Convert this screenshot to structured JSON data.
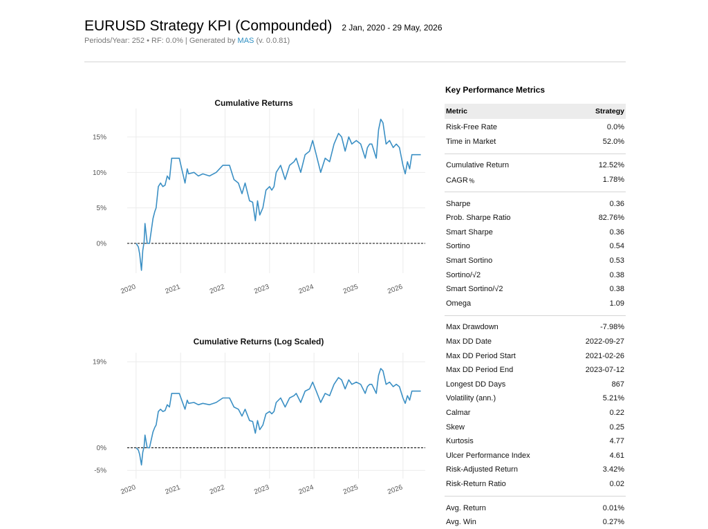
{
  "header": {
    "title": "EURUSD Strategy KPI (Compounded)",
    "date_range": "2 Jan, 2020 - 29 May, 2026",
    "subtitle_prefix": "Periods/Year: 252 • RF: 0.0% | Generated by ",
    "subtitle_link": "MAS",
    "subtitle_suffix": " (v. 0.0.81)"
  },
  "colors": {
    "line": "#3a8fc4",
    "link": "#2b8ec2",
    "grid": "#ebebeb"
  },
  "metrics": {
    "title": "Key Performance Metrics",
    "header": {
      "metric": "Metric",
      "value": "Strategy"
    },
    "groups": [
      [
        [
          "Risk-Free Rate",
          "0.0%"
        ],
        [
          "Time in Market",
          "52.0%"
        ]
      ],
      [
        [
          "Cumulative Return",
          "12.52%"
        ],
        [
          "CAGR﹪",
          "1.78%"
        ]
      ],
      [
        [
          "Sharpe",
          "0.36"
        ],
        [
          "Prob. Sharpe Ratio",
          "82.76%"
        ],
        [
          "Smart Sharpe",
          "0.36"
        ],
        [
          "Sortino",
          "0.54"
        ],
        [
          "Smart Sortino",
          "0.53"
        ],
        [
          "Sortino/√2",
          "0.38"
        ],
        [
          "Smart Sortino/√2",
          "0.38"
        ],
        [
          "Omega",
          "1.09"
        ]
      ],
      [
        [
          "Max Drawdown",
          "-7.98%"
        ],
        [
          "Max DD Date",
          "2022-09-27"
        ],
        [
          "Max DD Period Start",
          "2021-02-26"
        ],
        [
          "Max DD Period End",
          "2023-07-12"
        ],
        [
          "Longest DD Days",
          "867"
        ],
        [
          "Volatility (ann.)",
          "5.21%"
        ],
        [
          "Calmar",
          "0.22"
        ],
        [
          "Skew",
          "0.25"
        ],
        [
          "Kurtosis",
          "4.77"
        ],
        [
          "Ulcer Performance Index",
          "4.61"
        ],
        [
          "Risk-Adjusted Return",
          "3.42%"
        ],
        [
          "Risk-Return Ratio",
          "0.02"
        ]
      ],
      [
        [
          "Avg. Return",
          "0.01%"
        ],
        [
          "Avg. Win",
          "0.27%"
        ]
      ]
    ]
  },
  "chart_data": [
    {
      "type": "line",
      "title": "Cumulative Returns",
      "xlabel": "",
      "ylabel": "",
      "x_tick_labels": [
        "2020",
        "2021",
        "2022",
        "2023",
        "2024",
        "2025",
        "2026"
      ],
      "y_tick_labels": [
        "0%",
        "5%",
        "10%",
        "15%"
      ],
      "y_ticks": [
        0,
        5,
        10,
        15
      ],
      "ylim": [
        -4.2,
        19
      ],
      "xlim": [
        2019.8,
        2026.5
      ],
      "grid": true,
      "baseline": 0,
      "series": [
        {
          "x": [
            2020.0,
            2020.05,
            2020.08,
            2020.12,
            2020.15,
            2020.18,
            2020.2,
            2020.25,
            2020.3,
            2020.38,
            2020.42,
            2020.45,
            2020.5,
            2020.55,
            2020.6,
            2020.65,
            2020.7,
            2020.75,
            2020.8,
            2020.85,
            2020.9,
            2020.97,
            2021.1,
            2021.15,
            2021.18,
            2021.3,
            2021.4,
            2021.5,
            2021.65,
            2021.8,
            2021.95,
            2022.1,
            2022.2,
            2022.3,
            2022.38,
            2022.45,
            2022.55,
            2022.62,
            2022.68,
            2022.73,
            2022.78,
            2022.85,
            2022.92,
            2023.0,
            2023.05,
            2023.1,
            2023.15,
            2023.25,
            2023.35,
            2023.45,
            2023.55,
            2023.6,
            2023.7,
            2023.8,
            2023.9,
            2023.97,
            2024.05,
            2024.15,
            2024.25,
            2024.35,
            2024.45,
            2024.55,
            2024.62,
            2024.7,
            2024.78,
            2024.85,
            2024.95,
            2025.05,
            2025.15,
            2025.2,
            2025.25,
            2025.3,
            2025.4,
            2025.45,
            2025.5,
            2025.55,
            2025.62,
            2025.7,
            2025.78,
            2025.85,
            2025.92,
            2026.0,
            2026.05,
            2026.1,
            2026.15,
            2026.2,
            2026.3,
            2026.4
          ],
          "y": [
            0.0,
            -0.5,
            -1.5,
            -3.8,
            -1.0,
            0.2,
            2.8,
            0.0,
            0.0,
            3.5,
            4.5,
            5.0,
            8.0,
            8.5,
            8.0,
            8.2,
            9.5,
            9.0,
            12.0,
            12.0,
            12.0,
            12.0,
            8.5,
            10.5,
            9.8,
            10.0,
            9.5,
            9.8,
            9.5,
            10.0,
            11.0,
            11.0,
            9.0,
            8.5,
            7.0,
            8.5,
            6.0,
            5.8,
            3.2,
            6.0,
            4.0,
            5.0,
            7.5,
            8.0,
            7.5,
            8.0,
            10.0,
            11.0,
            9.0,
            11.0,
            11.5,
            12.0,
            10.0,
            12.5,
            13.0,
            14.5,
            12.5,
            10.0,
            12.0,
            11.5,
            14.0,
            15.5,
            15.0,
            13.0,
            15.0,
            14.0,
            14.5,
            14.0,
            12.0,
            13.5,
            14.0,
            14.0,
            12.0,
            16.0,
            17.5,
            17.0,
            14.0,
            14.5,
            13.5,
            14.0,
            13.5,
            11.0,
            9.8,
            11.5,
            10.5,
            12.5,
            12.5,
            12.5
          ]
        }
      ]
    },
    {
      "type": "line",
      "title": "Cumulative Returns (Log Scaled)",
      "xlabel": "",
      "ylabel": "",
      "log_scale": true,
      "x_tick_labels": [
        "2020",
        "2021",
        "2022",
        "2023",
        "2024",
        "2025",
        "2026"
      ],
      "y_tick_labels": [
        "-5%",
        "0%",
        "19%"
      ],
      "y_ticks": [
        -5,
        0,
        19
      ],
      "ylim": [
        -6.8,
        21
      ],
      "xlim": [
        2019.8,
        2026.5
      ],
      "grid": true,
      "baseline": 0,
      "series": [
        {
          "x": [
            2020.0,
            2020.05,
            2020.08,
            2020.12,
            2020.15,
            2020.18,
            2020.2,
            2020.25,
            2020.3,
            2020.38,
            2020.42,
            2020.45,
            2020.5,
            2020.55,
            2020.6,
            2020.65,
            2020.7,
            2020.75,
            2020.8,
            2020.85,
            2020.9,
            2020.97,
            2021.1,
            2021.15,
            2021.18,
            2021.3,
            2021.4,
            2021.5,
            2021.65,
            2021.8,
            2021.95,
            2022.1,
            2022.2,
            2022.3,
            2022.38,
            2022.45,
            2022.55,
            2022.62,
            2022.68,
            2022.73,
            2022.78,
            2022.85,
            2022.92,
            2023.0,
            2023.05,
            2023.1,
            2023.15,
            2023.25,
            2023.35,
            2023.45,
            2023.55,
            2023.6,
            2023.7,
            2023.8,
            2023.9,
            2023.97,
            2024.05,
            2024.15,
            2024.25,
            2024.35,
            2024.45,
            2024.55,
            2024.62,
            2024.7,
            2024.78,
            2024.85,
            2024.95,
            2025.05,
            2025.15,
            2025.2,
            2025.25,
            2025.3,
            2025.4,
            2025.45,
            2025.5,
            2025.55,
            2025.62,
            2025.7,
            2025.78,
            2025.85,
            2025.92,
            2026.0,
            2026.05,
            2026.1,
            2026.15,
            2026.2,
            2026.3,
            2026.4
          ],
          "y": [
            0.0,
            -0.5,
            -1.5,
            -3.8,
            -1.0,
            0.2,
            2.8,
            0.0,
            0.0,
            3.5,
            4.5,
            5.0,
            8.0,
            8.5,
            8.0,
            8.2,
            9.5,
            9.0,
            12.0,
            12.0,
            12.0,
            12.0,
            8.5,
            10.5,
            9.8,
            10.0,
            9.5,
            9.8,
            9.5,
            10.0,
            11.0,
            11.0,
            9.0,
            8.5,
            7.0,
            8.5,
            6.0,
            5.8,
            3.2,
            6.0,
            4.0,
            5.0,
            7.5,
            8.0,
            7.5,
            8.0,
            10.0,
            11.0,
            9.0,
            11.0,
            11.5,
            12.0,
            10.0,
            12.5,
            13.0,
            14.5,
            12.5,
            10.0,
            12.0,
            11.5,
            14.0,
            15.5,
            15.0,
            13.0,
            15.0,
            14.0,
            14.5,
            14.0,
            12.0,
            13.5,
            14.0,
            14.0,
            12.0,
            16.0,
            17.5,
            17.0,
            14.0,
            14.5,
            13.5,
            14.0,
            13.5,
            11.0,
            9.8,
            11.5,
            10.5,
            12.5,
            12.5,
            12.5
          ]
        }
      ]
    }
  ]
}
